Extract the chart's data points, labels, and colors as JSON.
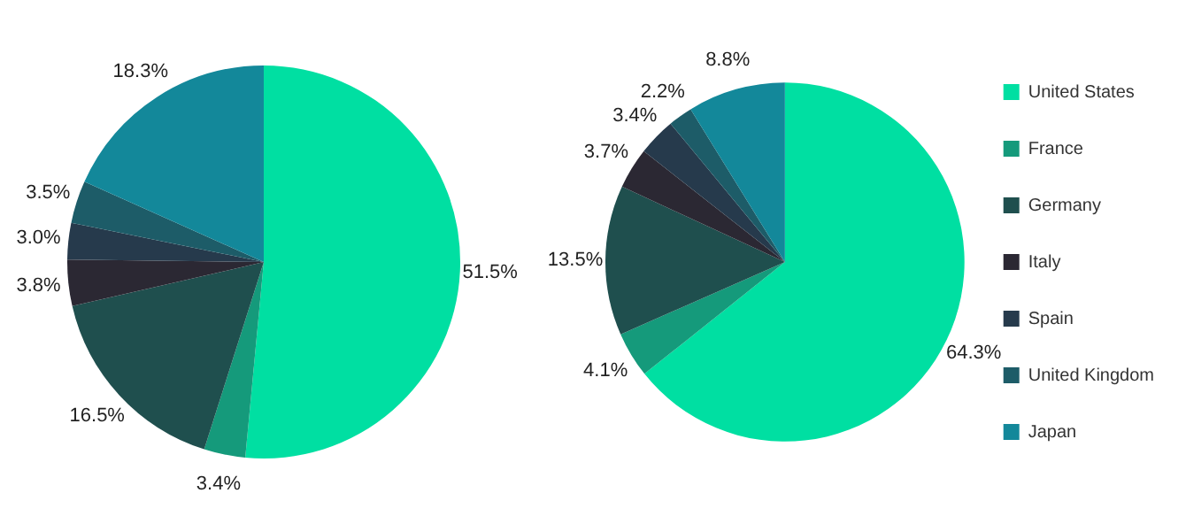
{
  "chart_data": [
    {
      "type": "pie",
      "values": [
        51.5,
        3.4,
        16.5,
        3.8,
        3.0,
        3.5,
        18.3
      ],
      "value_labels": [
        "51.5%",
        "3.4%",
        "16.5%",
        "3.8%",
        "3.0%",
        "3.5%",
        "18.3%"
      ],
      "colors": [
        "#00dfa2",
        "#159a7b",
        "#1f4f4e",
        "#2b2833",
        "#263a4c",
        "#1d5c68",
        "#13889a"
      ],
      "legend": false
    },
    {
      "type": "pie",
      "categories": [
        "United States",
        "France",
        "Germany",
        "Italy",
        "Spain",
        "United Kingdom",
        "Japan"
      ],
      "values": [
        64.3,
        4.1,
        13.5,
        3.7,
        3.4,
        2.2,
        8.8
      ],
      "value_labels": [
        "64.3%",
        "4.1%",
        "13.5%",
        "3.7%",
        "3.4%",
        "2.2%",
        "8.8%"
      ],
      "colors": [
        "#00dfa2",
        "#159a7b",
        "#1f4f4e",
        "#2b2833",
        "#263a4c",
        "#1d5c68",
        "#13889a"
      ],
      "legend": "right"
    }
  ]
}
